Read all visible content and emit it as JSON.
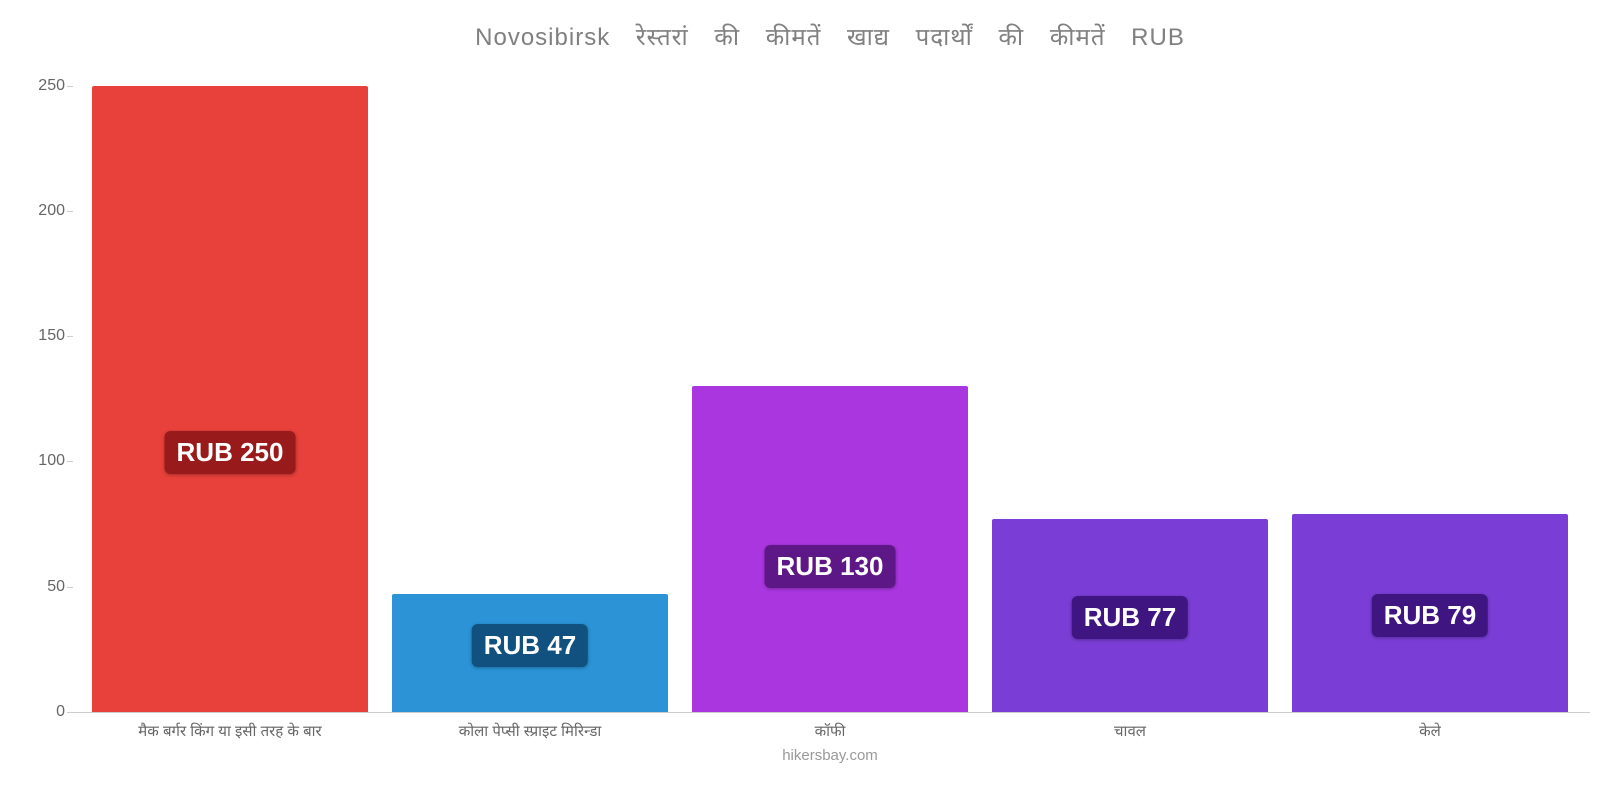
{
  "chart": {
    "type": "bar",
    "title": "Novosibirsk रेस्तरां की कीमतें खाद्य पदार्थों की कीमतें RUB",
    "title_fontsize": 24,
    "title_color": "#808080",
    "watermark": "hikersbay.com",
    "watermark_color": "#999999",
    "background_color": "#ffffff",
    "axis_color": "#cccccc",
    "tick_label_color": "#666666",
    "ylim": [
      0,
      259
    ],
    "yticks": [
      0,
      50,
      100,
      150,
      200,
      250
    ],
    "ytick_fontsize": 16,
    "bar_width_pct": 92,
    "categories": [
      "मैक बर्गर किंग या इसी तरह के बार",
      "कोला पेप्सी स्प्राइट मिरिन्डा",
      "कॉफी",
      "चावल",
      "केले"
    ],
    "values": [
      250,
      47,
      130,
      77,
      79
    ],
    "bar_colors": [
      "#e8403a",
      "#2b93d6",
      "#aa36e0",
      "#7a3ed6",
      "#7a3ed6"
    ],
    "value_labels": [
      "RUB 250",
      "RUB 47",
      "RUB 130",
      "RUB 77",
      "RUB 79"
    ],
    "value_label_bg": [
      "#991a1a",
      "#10517f",
      "#5e1786",
      "#3f1582",
      "#3f1582"
    ],
    "value_label_fontsize": 26,
    "value_label_color": "#ffffff",
    "x_label_fontsize": 15,
    "x_label_color": "#666666"
  }
}
